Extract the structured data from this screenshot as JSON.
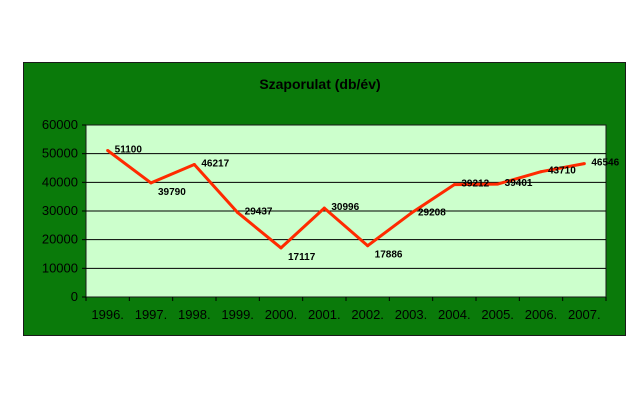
{
  "chart_data": {
    "type": "line",
    "title": "Szaporulat (db/év)",
    "xlabel": "",
    "ylabel": "",
    "categories": [
      "1996.",
      "1997.",
      "1998.",
      "1999.",
      "2000.",
      "2001.",
      "2002.",
      "2003.",
      "2004.",
      "2005.",
      "2006.",
      "2007."
    ],
    "series": [
      {
        "values": [
          51100,
          39790,
          46217,
          29437,
          17117,
          30996,
          17886,
          29208,
          39212,
          39401,
          43710,
          46546
        ]
      }
    ],
    "data_labels": [
      "51100",
      "39790",
      "46217",
      "29437",
      "17117",
      "30996",
      "17886",
      "29208",
      "39212",
      "39401",
      "43710",
      "46546"
    ],
    "ylim": [
      0,
      60000
    ],
    "yticks": [
      0,
      10000,
      20000,
      30000,
      40000,
      50000,
      60000
    ],
    "ytick_labels": [
      "0",
      "10000",
      "20000",
      "30000",
      "40000",
      "50000",
      "60000"
    ],
    "grid": true,
    "legend": "none",
    "colors": {
      "frame": "#0a7a0a",
      "plot_area": "#ccffcc",
      "line": "#ff2a00",
      "grid": "#000000",
      "text": "#000000"
    }
  }
}
